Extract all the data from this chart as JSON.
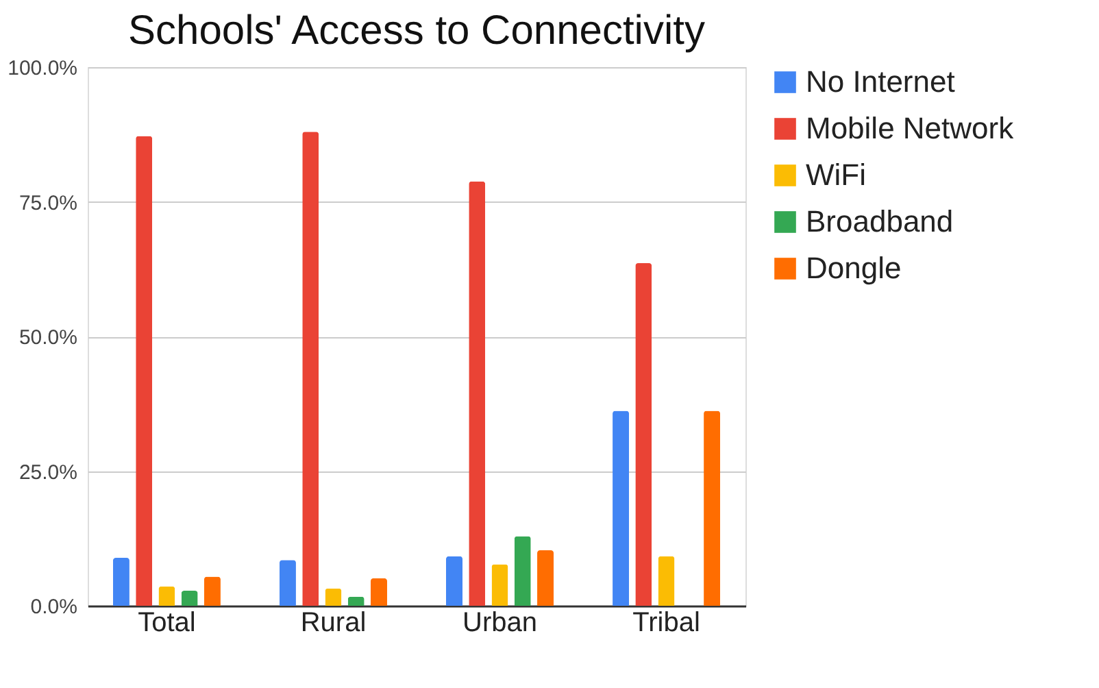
{
  "chart_data": {
    "type": "bar",
    "title": "Schools' Access to Connectivity",
    "categories": [
      "Total",
      "Rural",
      "Urban",
      "Tribal"
    ],
    "series": [
      {
        "name": "No Internet",
        "color": "#4285f4",
        "values": [
          8.9,
          8.5,
          9.2,
          36.2
        ]
      },
      {
        "name": "Mobile Network",
        "color": "#ea4335",
        "values": [
          87.2,
          88.0,
          78.8,
          63.6
        ]
      },
      {
        "name": "WiFi",
        "color": "#fbbc04",
        "values": [
          3.6,
          3.2,
          7.7,
          9.2
        ]
      },
      {
        "name": "Broadband",
        "color": "#34a853",
        "values": [
          2.8,
          1.7,
          12.9,
          0
        ]
      },
      {
        "name": "Dongle",
        "color": "#ff6d01",
        "values": [
          5.4,
          5.1,
          10.3,
          36.2
        ]
      }
    ],
    "ylim": [
      0,
      100
    ],
    "yticks": [
      {
        "value": 0,
        "label": "0.0%"
      },
      {
        "value": 25,
        "label": "25.0%"
      },
      {
        "value": 50,
        "label": "50.0%"
      },
      {
        "value": 75,
        "label": "75.0%"
      },
      {
        "value": 100,
        "label": "100.0%"
      }
    ],
    "grid": "y",
    "legend": "right"
  }
}
